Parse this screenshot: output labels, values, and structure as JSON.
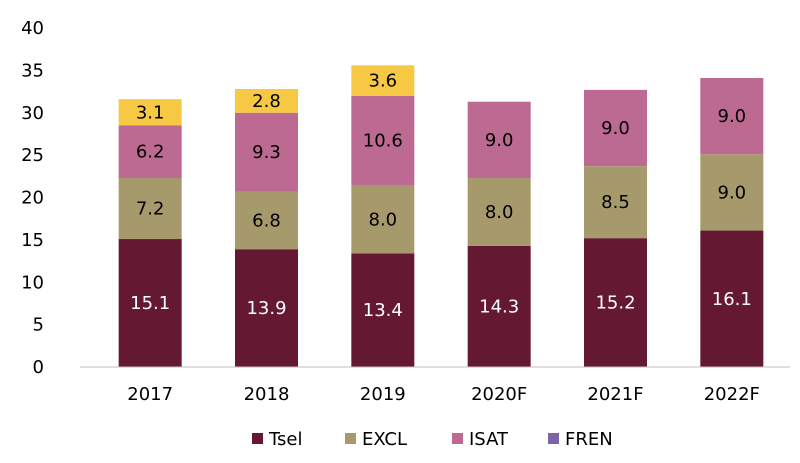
{
  "chart_data": {
    "type": "bar",
    "stacked": true,
    "categories": [
      "2017",
      "2018",
      "2019",
      "2020F",
      "2021F",
      "2022F"
    ],
    "series": [
      {
        "name": "Tsel",
        "color": "#641832",
        "label_color": "#ffffff",
        "values": [
          15.1,
          13.9,
          13.4,
          14.3,
          15.2,
          16.1
        ],
        "labels": [
          "15.1",
          "13.9",
          "13.4",
          "14.3",
          "15.2",
          "16.1"
        ]
      },
      {
        "name": "EXCL",
        "color": "#a69a6c",
        "label_color": "#000000",
        "values": [
          7.2,
          6.8,
          8.0,
          8.0,
          8.5,
          9.0
        ],
        "labels": [
          "7.2",
          "6.8",
          "8.0",
          "8.0",
          "8.5",
          "9.0"
        ]
      },
      {
        "name": "ISAT",
        "color": "#bc6a91",
        "label_color": "#000000",
        "values": [
          6.2,
          9.3,
          10.6,
          9.0,
          9.0,
          9.0
        ],
        "labels": [
          "6.2",
          "9.3",
          "10.6",
          "9.0",
          "9.0",
          "9.0"
        ]
      },
      {
        "name": "FREN",
        "color": "#f6c843",
        "legend_color": "#7d64a8",
        "label_color": "#000000",
        "values": [
          3.1,
          2.8,
          3.6,
          null,
          null,
          null
        ],
        "labels": [
          "3.1",
          "2.8",
          "3.6",
          "",
          "",
          ""
        ]
      }
    ],
    "ylim": [
      0,
      40
    ],
    "yticks": [
      "0",
      "5",
      "10",
      "15",
      "20",
      "25",
      "30",
      "35",
      "40"
    ],
    "grid": false,
    "legend_position": "bottom"
  }
}
